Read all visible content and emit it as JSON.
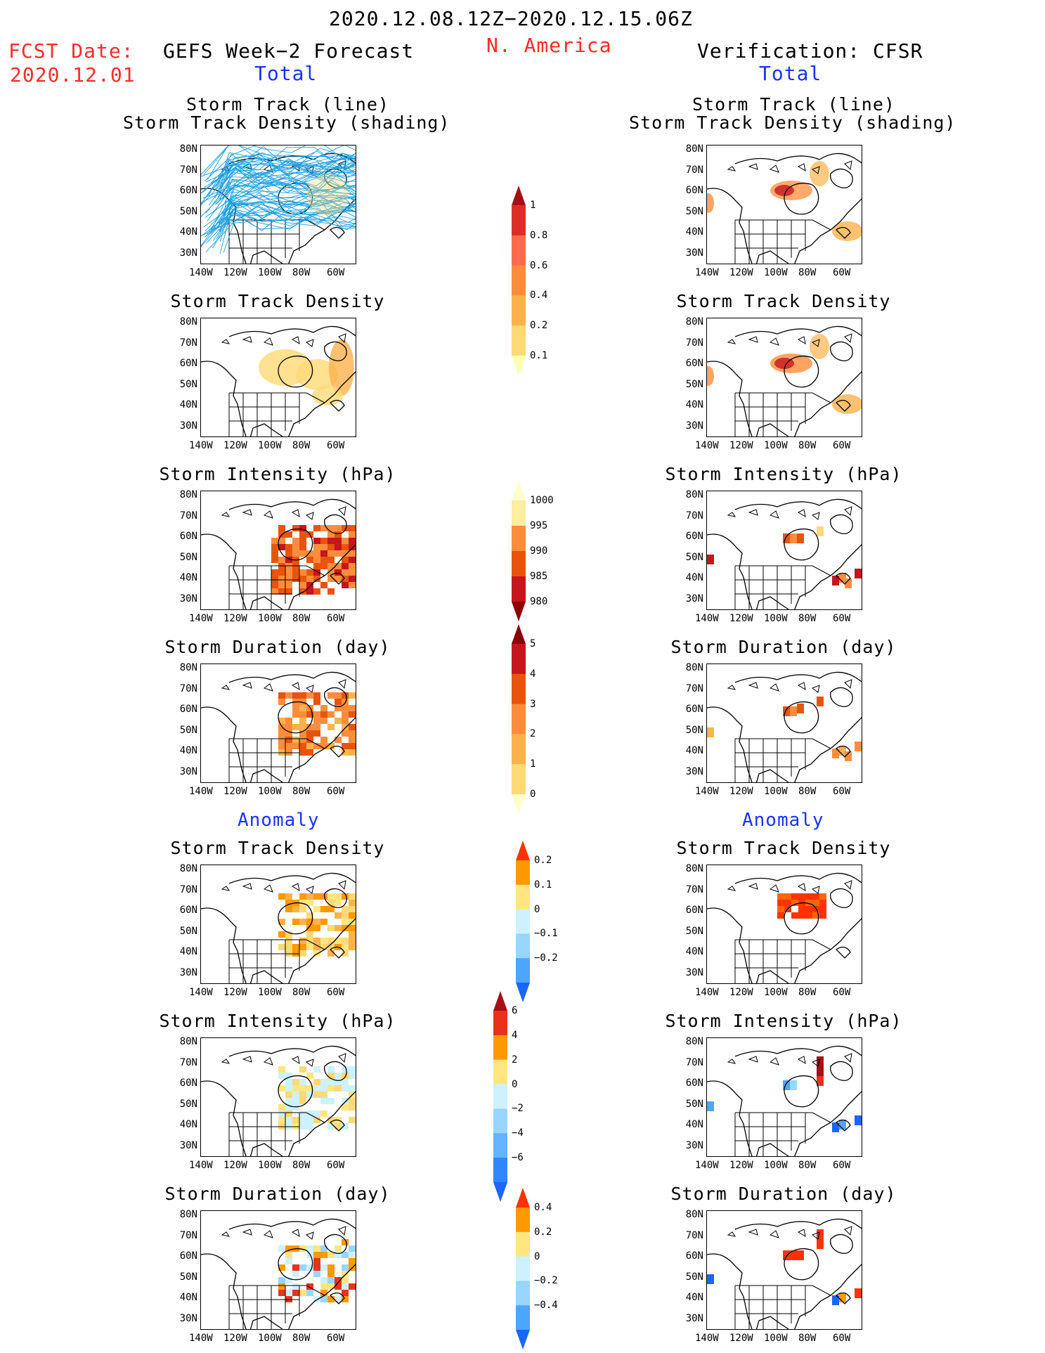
{
  "header": {
    "date_range": "2020.12.08.12Z−2020.12.15.06Z",
    "region": "N. America",
    "fcst_label": "FCST Date:",
    "fcst_date": "2020.12.01",
    "left_title": "GEFS Week−2 Forecast",
    "right_title": "Verification: CFSR",
    "left_total": "Total",
    "right_total": "Total",
    "left_anomaly": "Anomaly",
    "right_anomaly": "Anomaly"
  },
  "panel_titles": {
    "track_line": "Storm Track (line)",
    "track_shade": "Storm Track Density (shading)",
    "density": "Storm Track Density",
    "intensity": "Storm Intensity (hPa)",
    "duration": "Storm Duration (day)"
  },
  "axes": {
    "lat_labels": [
      "80N",
      "70N",
      "60N",
      "50N",
      "40N",
      "30N"
    ],
    "lon_labels": [
      "140W",
      "120W",
      "100W",
      "80W",
      "60W"
    ]
  },
  "colorbars": [
    {
      "id": "density_total",
      "labels": [
        "1",
        "0.8",
        "0.6",
        "0.4",
        "0.2",
        "0.1"
      ],
      "colors": [
        "#a50f15",
        "#de2d26",
        "#fb6a4a",
        "#fd8d3c",
        "#feb24c",
        "#fed976",
        "#ffffb2"
      ],
      "tail": "bottom"
    },
    {
      "id": "intensity_total",
      "labels": [
        "1000",
        "995",
        "990",
        "985",
        "980"
      ],
      "colors": [
        "#ffffcc",
        "#ffeda0",
        "#fd8d3c",
        "#e8540e",
        "#c4161c",
        "#8b0000"
      ],
      "tail": "top"
    },
    {
      "id": "duration_total",
      "labels": [
        "5",
        "4",
        "3",
        "2",
        "1",
        "0"
      ],
      "colors": [
        "#8b0000",
        "#c4161c",
        "#e8540e",
        "#fd8d3c",
        "#feb24c",
        "#fed976",
        "#ffffcc"
      ],
      "tail": "bottom"
    },
    {
      "id": "density_anom",
      "labels": [
        "0.2",
        "0.1",
        "0",
        "−0.1",
        "−0.2"
      ],
      "colors": [
        "#ff3300",
        "#ff9900",
        "#ffe680",
        "#ccf2ff",
        "#99d6ff",
        "#4da6ff",
        "#1a66ff"
      ],
      "tail": "none"
    },
    {
      "id": "intensity_anom",
      "labels": [
        "6",
        "4",
        "2",
        "0",
        "−2",
        "−4",
        "−6"
      ],
      "colors": [
        "#a50f15",
        "#e8321c",
        "#ff9900",
        "#ffe680",
        "#ccf2ff",
        "#99d6ff",
        "#66b3ff",
        "#3385ff",
        "#1a66ff"
      ],
      "tail": "none"
    },
    {
      "id": "duration_anom",
      "labels": [
        "0.4",
        "0.2",
        "0",
        "−0.2",
        "−0.4"
      ],
      "colors": [
        "#ff3300",
        "#ff9900",
        "#ffe680",
        "#ccf2ff",
        "#99d6ff",
        "#4da6ff",
        "#1a66ff"
      ],
      "tail": "none"
    }
  ],
  "colors": {
    "track_line": "#1a9fe0",
    "accent_red": "#ff2a2a",
    "accent_blue": "#1a32ff"
  }
}
